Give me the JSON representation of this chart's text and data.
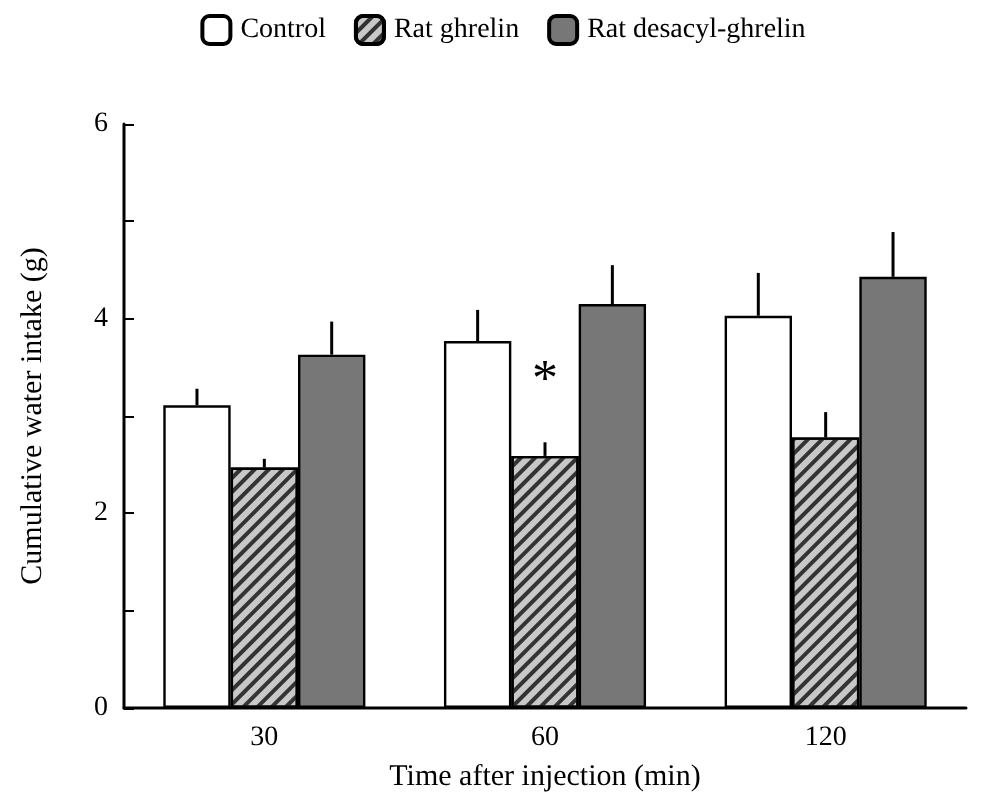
{
  "chart_data": {
    "type": "bar",
    "xlabel": "Time after injection (min)",
    "ylabel": "Cumulative water intake (g)",
    "categories": [
      "30",
      "60",
      "120"
    ],
    "series": [
      {
        "name": "Control",
        "color": "#ffffff",
        "values": [
          3.11,
          3.77,
          4.03
        ],
        "errors": [
          [
            3.11,
            3.28
          ],
          [
            3.77,
            4.09
          ],
          [
            4.03,
            4.47
          ]
        ]
      },
      {
        "name": "Rat ghrelin",
        "color": "#c8c8c8",
        "values": [
          2.47,
          2.59,
          2.78
        ],
        "errors": [
          [
            2.47,
            2.56
          ],
          [
            2.59,
            2.73
          ],
          [
            2.78,
            3.04
          ]
        ]
      },
      {
        "name": "Rat desacyl-ghrelin",
        "color": "#777777",
        "values": [
          3.63,
          4.15,
          4.43
        ],
        "errors": [
          [
            3.63,
            3.97
          ],
          [
            4.15,
            4.55
          ],
          [
            4.43,
            4.89
          ]
        ]
      }
    ],
    "ylim": [
      0,
      6
    ],
    "yticks": [
      0,
      {
        "value": 1,
        "label": null
      },
      2,
      {
        "value": 3,
        "label": null
      },
      4,
      {
        "value": 5,
        "label": null
      },
      6
    ],
    "annotations": [
      {
        "text": "*",
        "x": "60",
        "y": 2.59
      }
    ],
    "legend": "top",
    "grid": false
  }
}
